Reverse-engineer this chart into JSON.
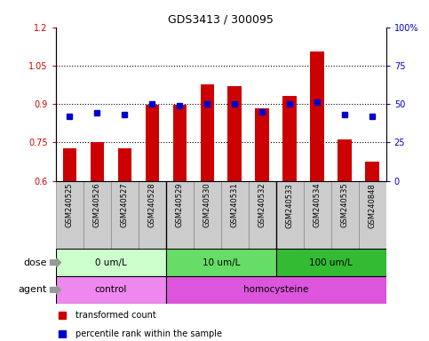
{
  "title": "GDS3413 / 300095",
  "categories": [
    "GSM240525",
    "GSM240526",
    "GSM240527",
    "GSM240528",
    "GSM240529",
    "GSM240530",
    "GSM240531",
    "GSM240532",
    "GSM240533",
    "GSM240534",
    "GSM240535",
    "GSM240848"
  ],
  "bar_values": [
    0.726,
    0.752,
    0.726,
    0.897,
    0.898,
    0.978,
    0.97,
    0.882,
    0.93,
    1.105,
    0.76,
    0.675
  ],
  "bar_color": "#cc0000",
  "bar_bottom": 0.6,
  "dot_values_pct": [
    42,
    44,
    43,
    50,
    49,
    50,
    50,
    45,
    50,
    51,
    43,
    42
  ],
  "dot_color": "#0000cc",
  "ylim_left": [
    0.6,
    1.2
  ],
  "ylim_right": [
    0,
    100
  ],
  "yticks_left": [
    0.6,
    0.75,
    0.9,
    1.05,
    1.2
  ],
  "ytick_labels_left": [
    "0.6",
    "0.75",
    "0.9",
    "1.05",
    "1.2"
  ],
  "yticks_right": [
    0,
    25,
    50,
    75,
    100
  ],
  "ytick_labels_right": [
    "0",
    "25",
    "50",
    "75",
    "100%"
  ],
  "hlines": [
    0.75,
    0.9,
    1.05
  ],
  "dose_groups": [
    {
      "label": "0 um/L",
      "start": 0,
      "end": 4
    },
    {
      "label": "10 um/L",
      "start": 4,
      "end": 8
    },
    {
      "label": "100 um/L",
      "start": 8,
      "end": 12
    }
  ],
  "dose_colors": [
    "#ccffcc",
    "#66dd66",
    "#33bb33"
  ],
  "agent_groups": [
    {
      "label": "control",
      "start": 0,
      "end": 4
    },
    {
      "label": "homocysteine",
      "start": 4,
      "end": 12
    }
  ],
  "agent_colors": [
    "#ee88ee",
    "#dd55dd"
  ],
  "dose_label": "dose",
  "agent_label": "agent",
  "legend_entries": [
    {
      "color": "#cc0000",
      "label": "transformed count"
    },
    {
      "color": "#0000cc",
      "label": "percentile rank within the sample"
    }
  ],
  "bg_color": "#ffffff",
  "tick_bg_color": "#cccccc",
  "left_tick_color": "#cc0000",
  "right_tick_color": "#0000cc",
  "sep_colors": [
    "#cccccc",
    "#66dd66"
  ]
}
